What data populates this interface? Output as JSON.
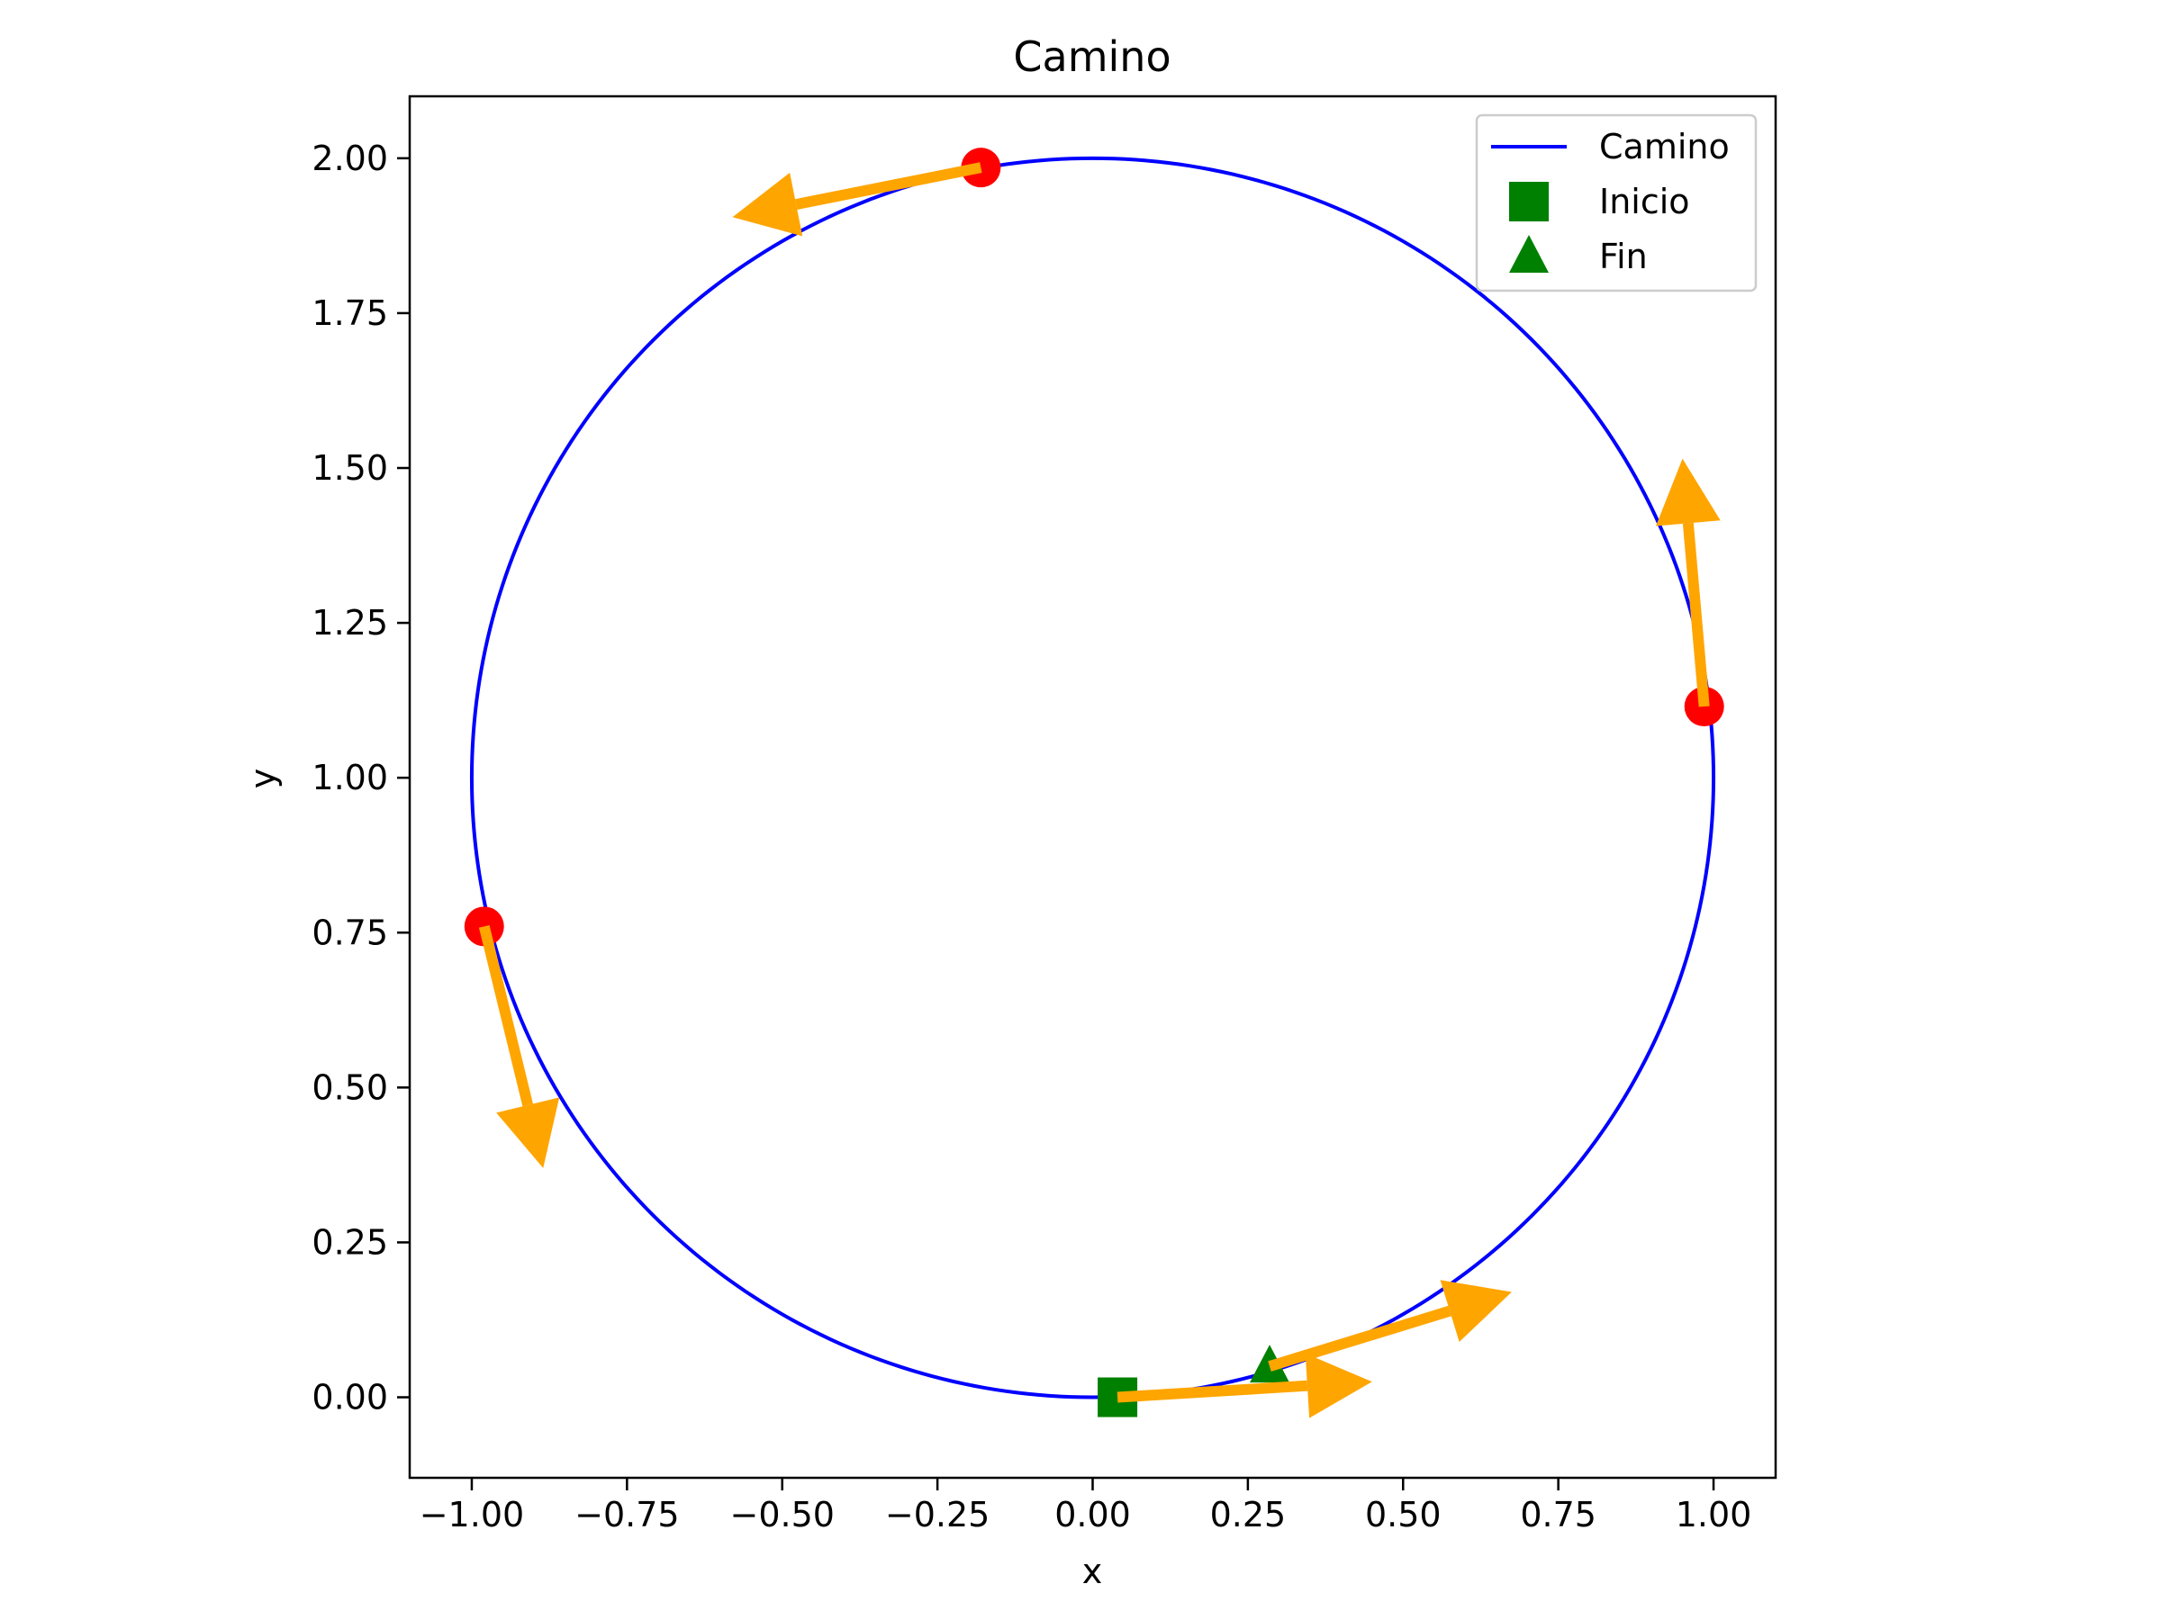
{
  "chart_data": {
    "type": "line",
    "title": "Camino",
    "xlabel": "x",
    "ylabel": "y",
    "xlim": [
      -1.1,
      1.1
    ],
    "ylim": [
      -0.13,
      2.1
    ],
    "xticks": [
      -1.0,
      -0.75,
      -0.5,
      -0.25,
      0.0,
      0.25,
      0.5,
      0.75,
      1.0
    ],
    "xtick_labels": [
      "−1.00",
      "−0.75",
      "−0.50",
      "−0.25",
      "0.00",
      "0.25",
      "0.50",
      "0.75",
      "1.00"
    ],
    "yticks": [
      0.0,
      0.25,
      0.5,
      0.75,
      1.0,
      1.25,
      1.5,
      1.75,
      2.0
    ],
    "ytick_labels": [
      "0.00",
      "0.25",
      "0.50",
      "0.75",
      "1.00",
      "1.25",
      "1.50",
      "1.75",
      "2.00"
    ],
    "grid": false,
    "legend_position": "top-right",
    "path": {
      "name": "Camino",
      "shape": "circle",
      "center": [
        0.0,
        1.0
      ],
      "radius": 1.0,
      "color": "#0000ff"
    },
    "start_marker": {
      "name": "Inicio",
      "x": 0.04,
      "y": 0.0,
      "marker": "square",
      "color": "#008000"
    },
    "end_marker": {
      "name": "Fin",
      "x": 0.285,
      "y": 0.05,
      "marker": "triangle",
      "color": "#008000"
    },
    "points": {
      "color": "#ff0000",
      "values": [
        {
          "x": -0.18,
          "y": 1.985
        },
        {
          "x": 0.985,
          "y": 1.115
        },
        {
          "x": -0.98,
          "y": 0.76
        }
      ]
    },
    "arrows": {
      "color": "#ffa500",
      "values": [
        {
          "x": 0.04,
          "y": 0.0,
          "x_end": 0.45,
          "y_end": 0.025
        },
        {
          "x": 0.285,
          "y": 0.05,
          "x_end": 0.675,
          "y_end": 0.17
        },
        {
          "x": -0.18,
          "y": 1.985,
          "x_end": -0.58,
          "y_end": 1.905
        },
        {
          "x": 0.985,
          "y": 1.115,
          "x_end": 0.95,
          "y_end": 1.515
        },
        {
          "x": -0.98,
          "y": 0.76,
          "x_end": -0.885,
          "y_end": 0.37
        }
      ]
    },
    "legend": [
      {
        "label": "Camino",
        "symbol": "line",
        "color": "#0000ff"
      },
      {
        "label": "Inicio",
        "symbol": "square",
        "color": "#008000"
      },
      {
        "label": "Fin",
        "symbol": "triangle",
        "color": "#008000"
      }
    ]
  }
}
